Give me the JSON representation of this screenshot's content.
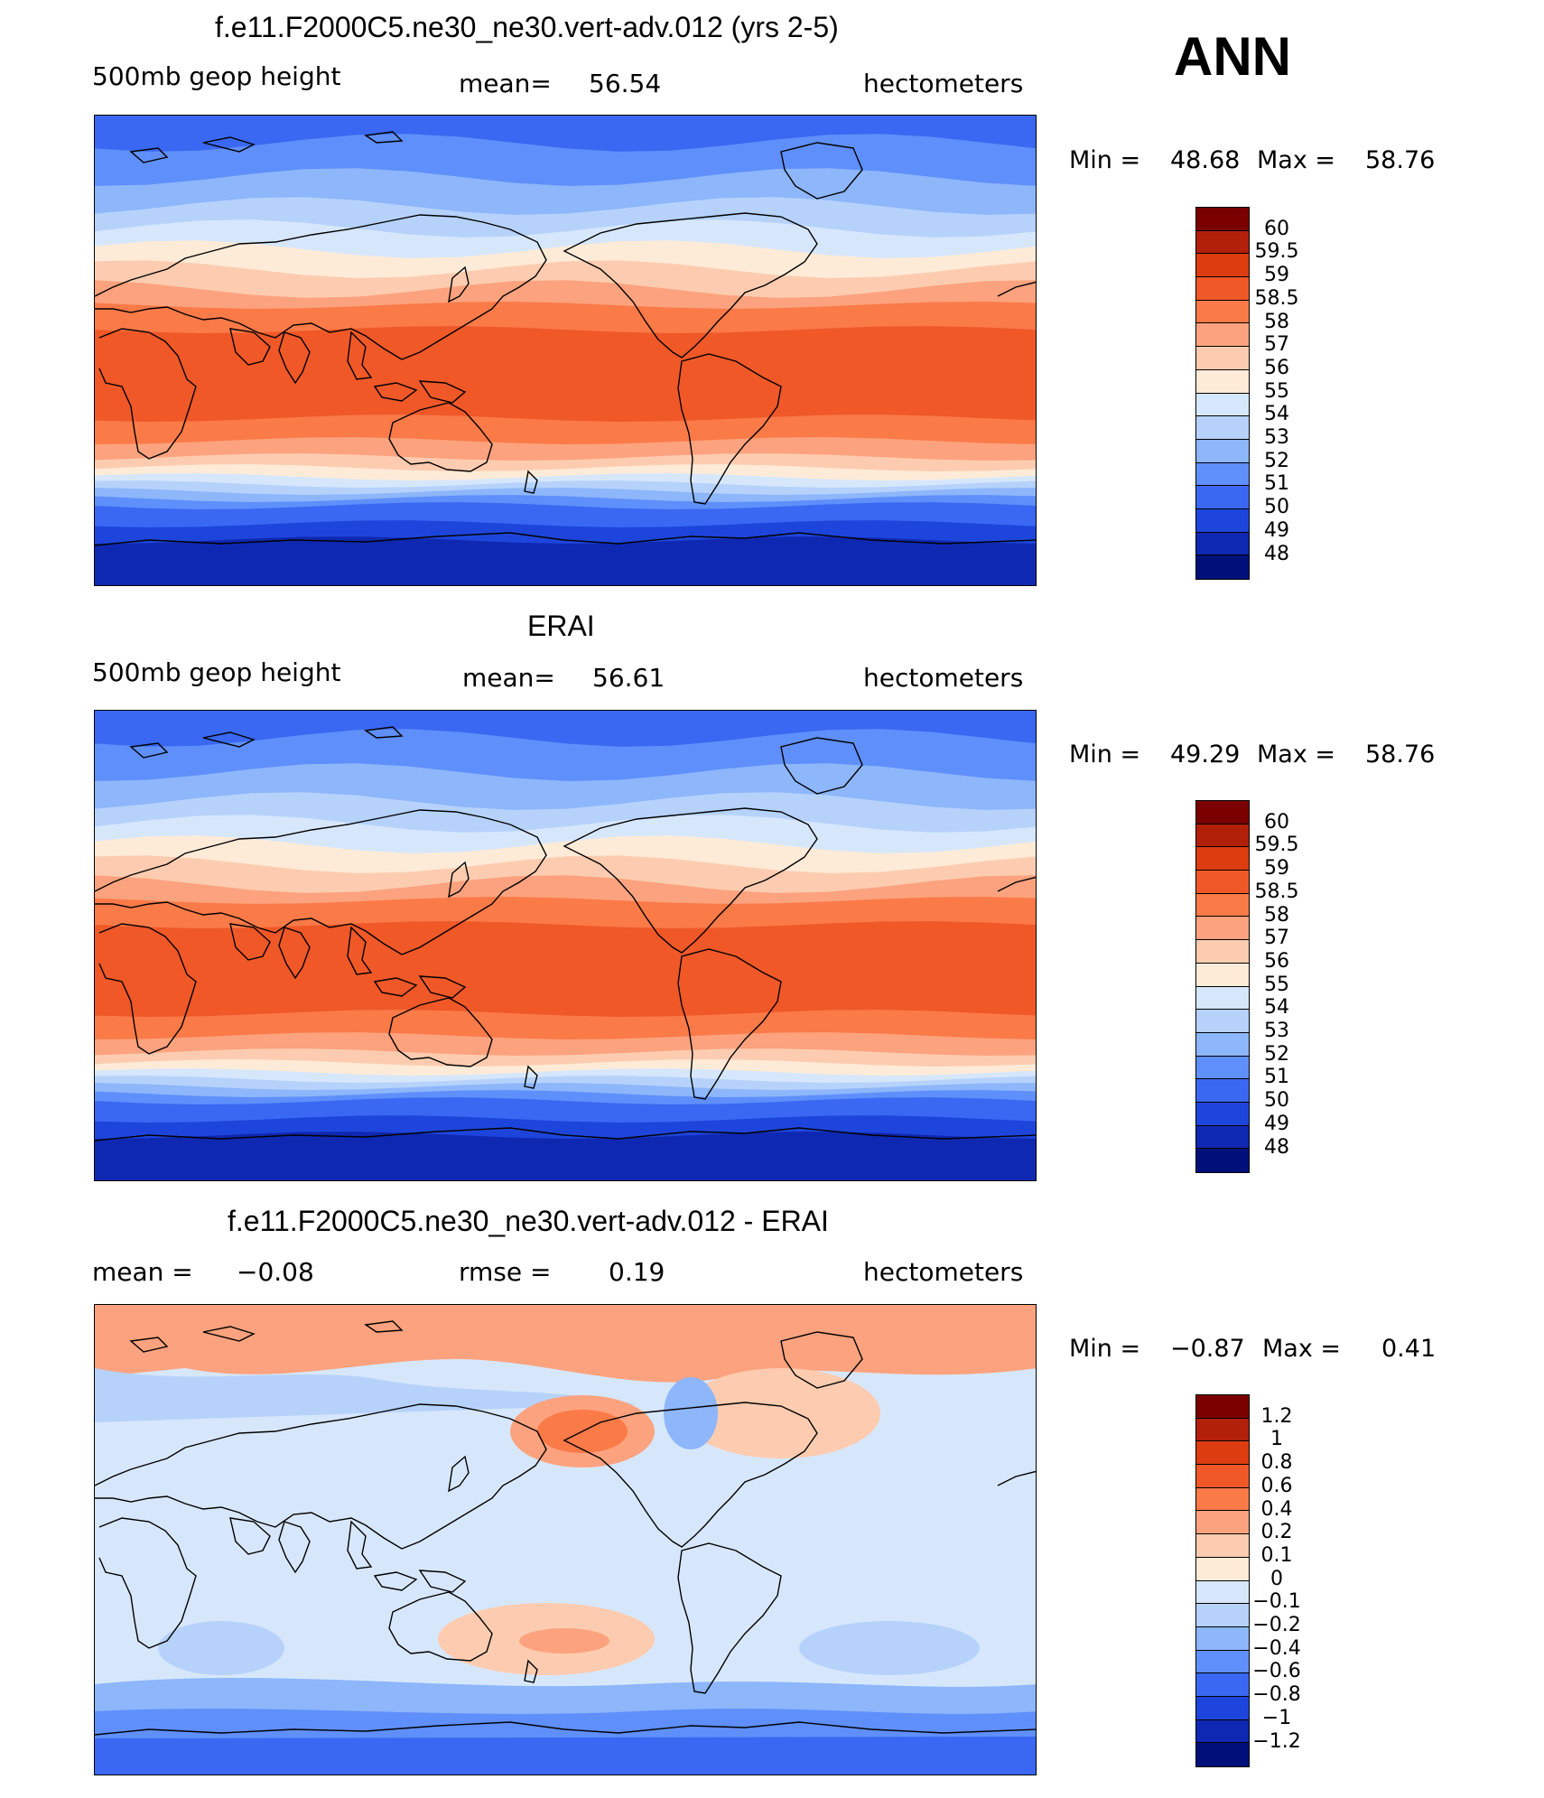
{
  "season": "ANN",
  "panels": [
    {
      "title": "f.e11.F2000C5.ne30_ne30.vert-adv.012 (yrs 2-5)",
      "left": "500mb  geop  height",
      "mid_label": "mean=",
      "mid_value": "56.54",
      "right": "hectometers",
      "min_label": "Min  =",
      "min_value": "48.68",
      "max_label": "Max  =",
      "max_value": "58.76",
      "colorbar": {
        "labels": [
          "60",
          "59.5",
          "59",
          "58.5",
          "58",
          "57",
          "56",
          "55",
          "54",
          "53",
          "52",
          "51",
          "50",
          "49",
          "48"
        ],
        "colors": [
          "#7a0000",
          "#b3200a",
          "#dd3c10",
          "#f05828",
          "#fa7a48",
          "#fca27e",
          "#fdccb0",
          "#fdebd8",
          "#d7e7fb",
          "#b6d2fb",
          "#8db6fb",
          "#5f8ffa",
          "#3a68f2",
          "#1e45db",
          "#0f28b2",
          "#00107a"
        ]
      },
      "map_field": "model"
    },
    {
      "title": "ERAI",
      "left": "500mb  geop  height",
      "mid_label": "mean=",
      "mid_value": "56.61",
      "right": "hectometers",
      "min_label": "Min  =",
      "min_value": "49.29",
      "max_label": "Max  =",
      "max_value": "58.76",
      "colorbar": {
        "labels": [
          "60",
          "59.5",
          "59",
          "58.5",
          "58",
          "57",
          "56",
          "55",
          "54",
          "53",
          "52",
          "51",
          "50",
          "49",
          "48"
        ],
        "colors": [
          "#7a0000",
          "#b3200a",
          "#dd3c10",
          "#f05828",
          "#fa7a48",
          "#fca27e",
          "#fdccb0",
          "#fdebd8",
          "#d7e7fb",
          "#b6d2fb",
          "#8db6fb",
          "#5f8ffa",
          "#3a68f2",
          "#1e45db",
          "#0f28b2",
          "#00107a"
        ]
      },
      "map_field": "obs"
    },
    {
      "title": "f.e11.F2000C5.ne30_ne30.vert-adv.012 - ERAI",
      "left": "mean  =",
      "left_value": "−0.08",
      "mid_label": "rmse  =",
      "mid_value": "0.19",
      "right": "hectometers",
      "min_label": "Min  =",
      "min_value": "−0.87",
      "max_label": "Max  =",
      "max_value": "0.41",
      "colorbar": {
        "labels": [
          "1.2",
          "1",
          "0.8",
          "0.6",
          "0.4",
          "0.2",
          "0.1",
          "0",
          "−0.1",
          "−0.2",
          "−0.4",
          "−0.6",
          "−0.8",
          "−1",
          "−1.2"
        ],
        "colors": [
          "#7a0000",
          "#b3200a",
          "#dd3c10",
          "#f05828",
          "#fa7a48",
          "#fca27e",
          "#fdccb0",
          "#fdebd8",
          "#d7e7fb",
          "#b6d2fb",
          "#8db6fb",
          "#5f8ffa",
          "#3a68f2",
          "#1e45db",
          "#0f28b2",
          "#00107a"
        ]
      },
      "map_field": "diff"
    }
  ]
}
